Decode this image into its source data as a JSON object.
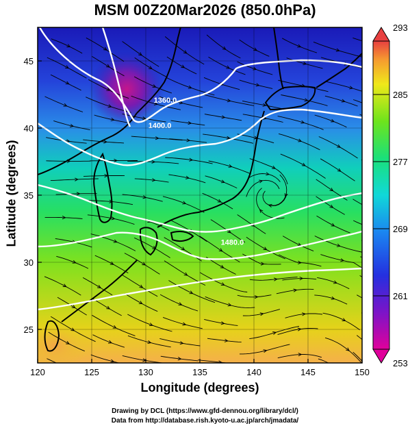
{
  "title": "MSM 00Z20Mar2026 (850.0hPa)",
  "x_axis": {
    "label": "Longitude (degrees)",
    "range": [
      120,
      150
    ],
    "ticks": [
      120,
      125,
      130,
      135,
      140,
      145,
      150
    ]
  },
  "y_axis": {
    "label": "Latitude  (degrees)",
    "range": [
      22.5,
      47.5
    ],
    "ticks": [
      25,
      30,
      35,
      40,
      45
    ]
  },
  "colorbar": {
    "range": [
      253,
      293
    ],
    "labels": [
      293,
      285,
      277,
      269,
      261,
      253
    ]
  },
  "contour_labels": [
    {
      "text": "1360.0",
      "lon": 131.8,
      "lat": 41.9
    },
    {
      "text": "1400.0",
      "lon": 131.3,
      "lat": 40.0
    },
    {
      "text": "1480.0",
      "lon": 138.0,
      "lat": 31.3
    }
  ],
  "credits": {
    "line1": "Drawing by DCL (https://www.gfd-dennou.org/library/dcl/)",
    "line2": "Data from http://database.rish.kyoto-u.ac.jp/arch/jmadata/"
  }
}
